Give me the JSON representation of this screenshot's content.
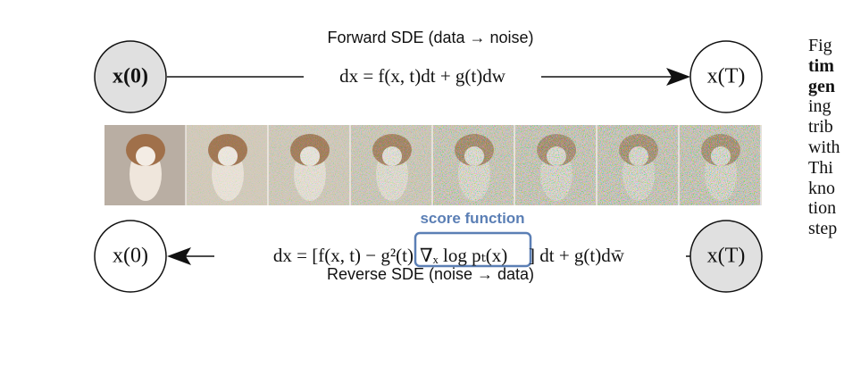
{
  "forward": {
    "title": "Forward SDE (data → noise)",
    "equation": "dx = f(x, t)dt + g(t)dw",
    "start": "x(0)",
    "end": "x(T)"
  },
  "reverse": {
    "title": "Reverse SDE (noise → data)",
    "equation_left": "dx = [f(x, t) − g²(t)",
    "equation_score": "∇ₓ log pₜ(x)",
    "equation_right": "] dt + g(t)dw̄",
    "score_label": "score function",
    "start": "x(T)",
    "end": "x(0)"
  },
  "caption_fragment": [
    "Fig",
    "tim",
    "gen",
    "ing",
    "trib",
    "with",
    "Thi",
    "kno",
    "tion",
    "step"
  ]
}
